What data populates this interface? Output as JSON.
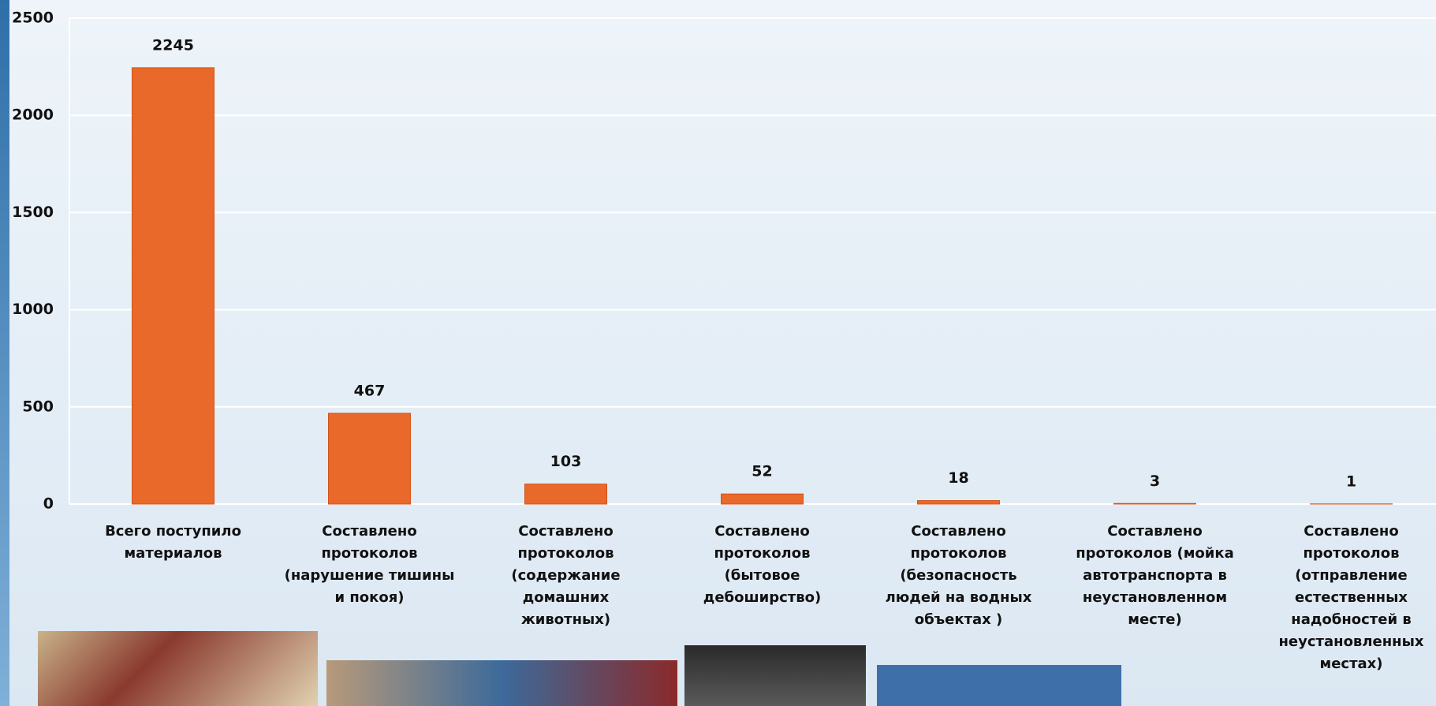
{
  "chart_data": {
    "type": "bar",
    "categories": [
      "Всего поступило материалов",
      "Составлено протоколов (нарушение тишины и покоя)",
      "Составлено протоколов (содержание домашних животных)",
      "Составлено протоколов (бытовое дебоширство)",
      "Составлено протоколов (безопасность людей на водных объектах )",
      "Составлено протоколов (мойка автотранспорта в неустановленном месте)",
      "Составлено протоколов (отправление естественных надобностей в неустановленных местах)"
    ],
    "values": [
      2245,
      467,
      103,
      52,
      18,
      3,
      1
    ],
    "color": "#e8692a",
    "ylim": [
      0,
      2500
    ],
    "yticks": [
      0,
      500,
      1000,
      1500,
      2000,
      2500
    ],
    "grid": true
  }
}
